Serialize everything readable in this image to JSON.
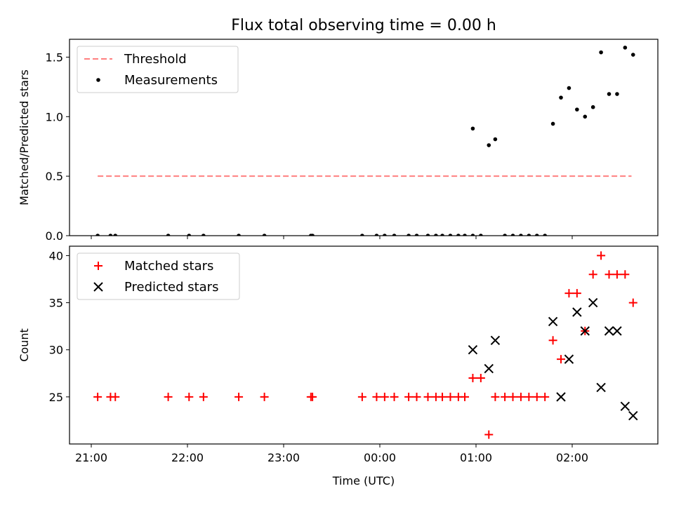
{
  "chart_data": {
    "title": "Flux total observing time = 0.00 h",
    "xlabel": "Time (UTC)",
    "x_ticks": [
      "21:00",
      "22:00",
      "23:00",
      "00:00",
      "01:00",
      "02:00"
    ],
    "panels": [
      {
        "type": "scatter",
        "ylabel": "Matched/Predicted stars",
        "ylim": [
          0,
          1.65
        ],
        "y_ticks": [
          "0.0",
          "0.5",
          "1.0",
          "1.5"
        ],
        "legend": {
          "placement": "upper-left"
        },
        "series": [
          {
            "name": "Threshold",
            "kind": "dashed-line",
            "color": "#ff7f7f",
            "x": [
              "21:04",
              "02:37"
            ],
            "y": [
              0.5,
              0.5
            ]
          },
          {
            "name": "Measurements",
            "kind": "dots",
            "color": "#000000",
            "points": [
              [
                "21:04",
                0
              ],
              [
                "21:12",
                0
              ],
              [
                "21:15",
                0
              ],
              [
                "21:48",
                0
              ],
              [
                "22:01",
                0
              ],
              [
                "22:10",
                0
              ],
              [
                "22:32",
                0
              ],
              [
                "22:48",
                0
              ],
              [
                "23:17",
                0
              ],
              [
                "23:18",
                0
              ],
              [
                "23:49",
                0
              ],
              [
                "23:58",
                0
              ],
              [
                "00:03",
                0
              ],
              [
                "00:09",
                0
              ],
              [
                "00:18",
                0
              ],
              [
                "00:23",
                0
              ],
              [
                "00:30",
                0
              ],
              [
                "00:35",
                0
              ],
              [
                "00:39",
                0
              ],
              [
                "00:44",
                0
              ],
              [
                "00:49",
                0
              ],
              [
                "00:53",
                0
              ],
              [
                "00:58",
                0
              ],
              [
                "01:03",
                0
              ],
              [
                "01:18",
                0
              ],
              [
                "01:23",
                0
              ],
              [
                "01:28",
                0
              ],
              [
                "01:33",
                0
              ],
              [
                "01:38",
                0
              ],
              [
                "01:43",
                0
              ],
              [
                "00:58",
                0.9
              ],
              [
                "01:08",
                0.76
              ],
              [
                "01:12",
                0.81
              ],
              [
                "01:48",
                0.94
              ],
              [
                "01:53",
                1.16
              ],
              [
                "01:58",
                1.24
              ],
              [
                "02:03",
                1.06
              ],
              [
                "02:08",
                1.0
              ],
              [
                "02:13",
                1.08
              ],
              [
                "02:18",
                1.54
              ],
              [
                "02:23",
                1.19
              ],
              [
                "02:28",
                1.19
              ],
              [
                "02:33",
                1.58
              ],
              [
                "02:38",
                1.52
              ]
            ]
          }
        ]
      },
      {
        "type": "scatter",
        "ylabel": "Count",
        "ylim": [
          20,
          41
        ],
        "y_ticks": [
          "25",
          "30",
          "35",
          "40"
        ],
        "legend": {
          "placement": "upper-left"
        },
        "series": [
          {
            "name": "Matched stars",
            "kind": "plus",
            "color": "#ff0000",
            "points": [
              [
                "21:04",
                25
              ],
              [
                "21:12",
                25
              ],
              [
                "21:15",
                25
              ],
              [
                "21:48",
                25
              ],
              [
                "22:01",
                25
              ],
              [
                "22:10",
                25
              ],
              [
                "22:32",
                25
              ],
              [
                "22:48",
                25
              ],
              [
                "23:17",
                25
              ],
              [
                "23:18",
                25
              ],
              [
                "23:49",
                25
              ],
              [
                "23:58",
                25
              ],
              [
                "00:03",
                25
              ],
              [
                "00:09",
                25
              ],
              [
                "00:18",
                25
              ],
              [
                "00:23",
                25
              ],
              [
                "00:30",
                25
              ],
              [
                "00:35",
                25
              ],
              [
                "00:39",
                25
              ],
              [
                "00:44",
                25
              ],
              [
                "00:49",
                25
              ],
              [
                "00:53",
                25
              ],
              [
                "00:58",
                27
              ],
              [
                "01:03",
                27
              ],
              [
                "01:08",
                21
              ],
              [
                "01:12",
                25
              ],
              [
                "01:18",
                25
              ],
              [
                "01:23",
                25
              ],
              [
                "01:28",
                25
              ],
              [
                "01:33",
                25
              ],
              [
                "01:38",
                25
              ],
              [
                "01:43",
                25
              ],
              [
                "01:48",
                31
              ],
              [
                "01:53",
                29
              ],
              [
                "01:58",
                36
              ],
              [
                "02:03",
                36
              ],
              [
                "02:08",
                32
              ],
              [
                "02:13",
                38
              ],
              [
                "02:18",
                40
              ],
              [
                "02:23",
                38
              ],
              [
                "02:28",
                38
              ],
              [
                "02:33",
                38
              ],
              [
                "02:38",
                35
              ]
            ]
          },
          {
            "name": "Predicted stars",
            "kind": "cross",
            "color": "#000000",
            "points": [
              [
                "00:58",
                30
              ],
              [
                "01:08",
                28
              ],
              [
                "01:12",
                31
              ],
              [
                "01:48",
                33
              ],
              [
                "01:53",
                25
              ],
              [
                "01:58",
                29
              ],
              [
                "02:03",
                34
              ],
              [
                "02:08",
                32
              ],
              [
                "02:13",
                35
              ],
              [
                "02:18",
                26
              ],
              [
                "02:23",
                32
              ],
              [
                "02:28",
                32
              ],
              [
                "02:33",
                24
              ],
              [
                "02:38",
                23
              ]
            ]
          }
        ]
      }
    ]
  }
}
